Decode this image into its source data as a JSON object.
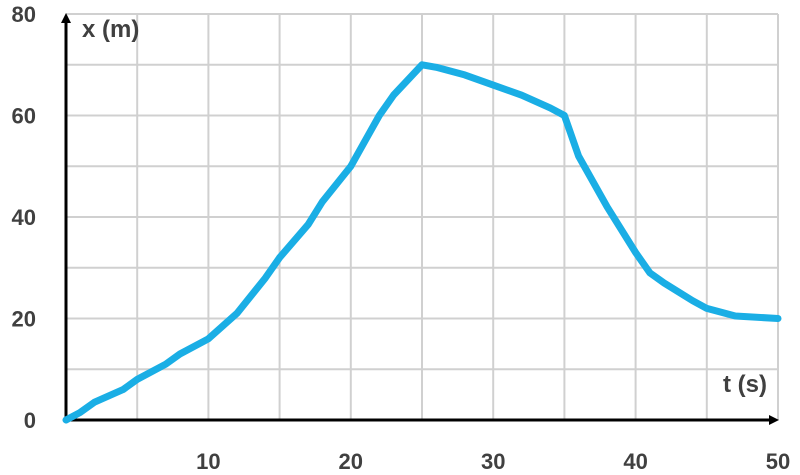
{
  "chart_data": {
    "type": "line",
    "xlabel": "t (s)",
    "ylabel": "x (m)",
    "xlim": [
      0,
      50
    ],
    "ylim": [
      0,
      80
    ],
    "x_ticks": [
      10,
      20,
      30,
      40,
      50
    ],
    "y_ticks": [
      0,
      20,
      40,
      60,
      80
    ],
    "x_grid_step": 5,
    "y_grid_step": 10,
    "grid": true,
    "series": [
      {
        "color": "#1aaee5",
        "x": [
          0,
          1,
          2,
          4,
          5,
          7,
          8,
          10,
          12,
          14,
          15,
          17,
          18,
          20,
          21,
          22,
          23,
          25,
          26,
          28,
          30,
          32,
          34,
          35,
          36,
          38,
          40,
          41,
          42,
          44,
          45,
          47,
          50
        ],
        "y": [
          0,
          1.5,
          3.5,
          6,
          8,
          11,
          13,
          16,
          21,
          28,
          32,
          38.5,
          43,
          50,
          55,
          60,
          64,
          70,
          69.5,
          68,
          66,
          64,
          61.5,
          60,
          52,
          42,
          33,
          29,
          27,
          23.5,
          22,
          20.5,
          20
        ]
      }
    ]
  }
}
